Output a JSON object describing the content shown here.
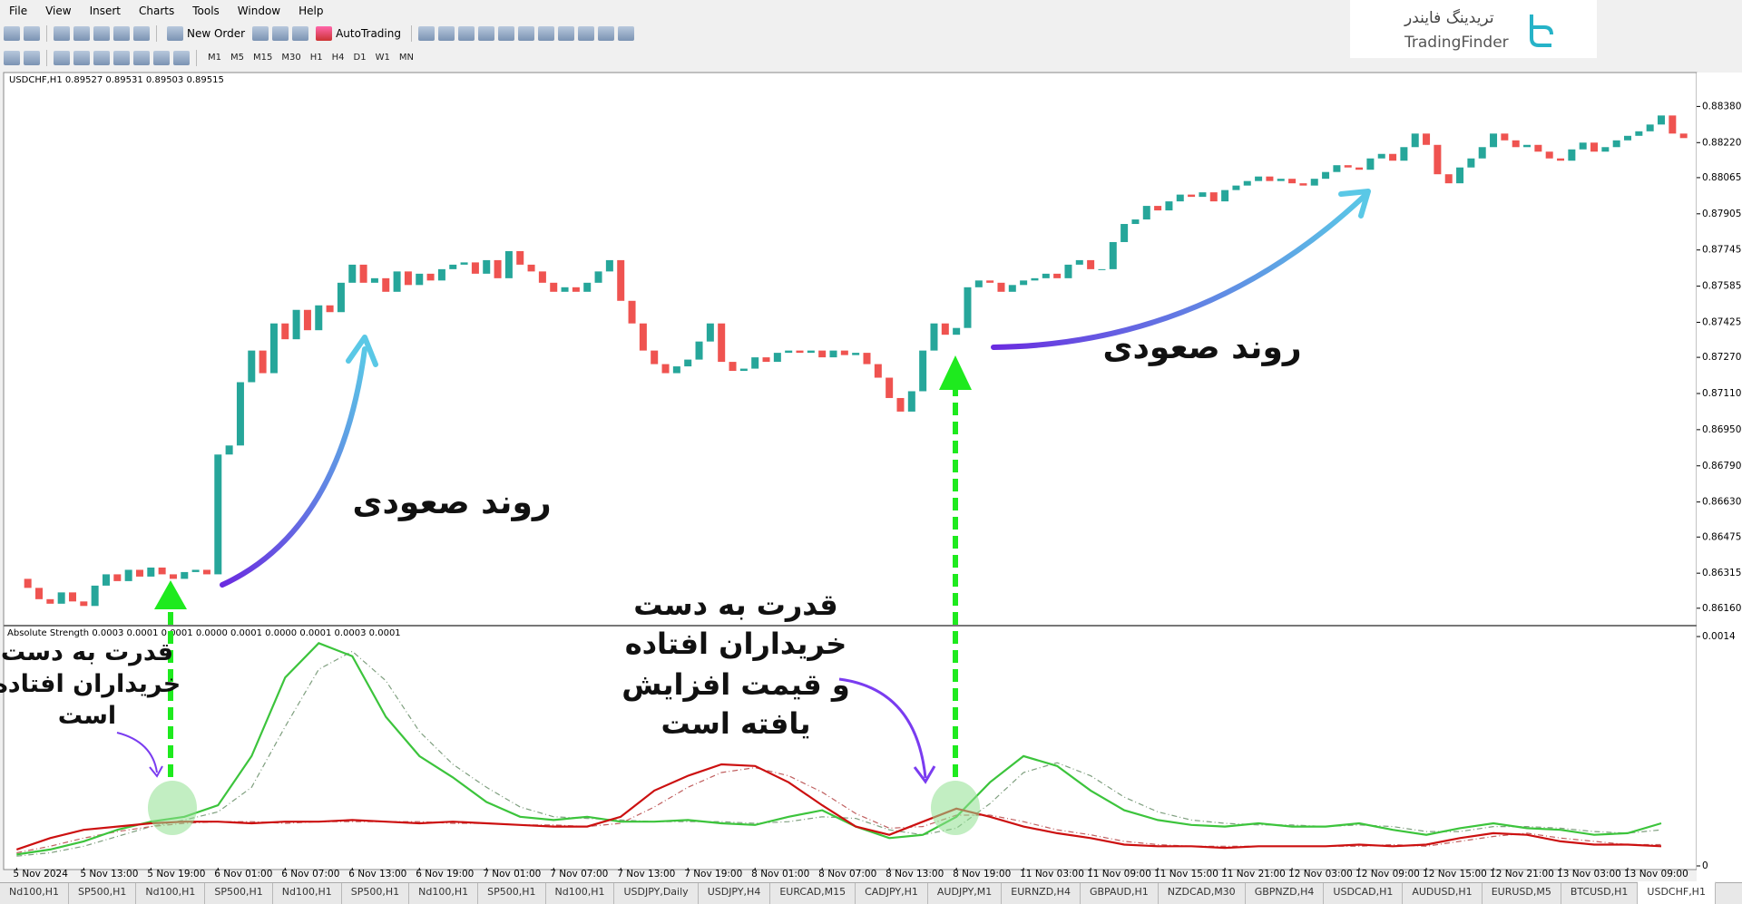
{
  "menu": [
    "File",
    "View",
    "Insert",
    "Charts",
    "Tools",
    "Window",
    "Help"
  ],
  "toolbar": {
    "new_order": "New Order",
    "auto_trading": "AutoTrading",
    "timeframes": [
      "M1",
      "M5",
      "M15",
      "M30",
      "H1",
      "H4",
      "D1",
      "W1",
      "MN"
    ]
  },
  "logo": {
    "persian": "تریدینگ فایندر",
    "latin": "TradingFinder"
  },
  "annotations": {
    "uptrend_1": "روند صعودی",
    "uptrend_2": "روند صعودی",
    "note_1": [
      "قدرت به دست",
      "خریداران افتاده",
      "است"
    ],
    "note_2": [
      "قدرت به دست",
      "خریداران افتاده",
      "و قیمت افزایش",
      "یافته است"
    ]
  },
  "tabs": [
    "Nd100,H1",
    "SP500,H1",
    "Nd100,H1",
    "SP500,H1",
    "Nd100,H1",
    "SP500,H1",
    "Nd100,H1",
    "SP500,H1",
    "Nd100,H1",
    "USDJPY,Daily",
    "USDJPY,H4",
    "EURCAD,M15",
    "CADJPY,H1",
    "AUDJPY,M1",
    "EURNZD,H4",
    "GBPAUD,H1",
    "NZDCAD,M30",
    "GBPNZD,H4",
    "USDCAD,H1",
    "AUDUSD,H1",
    "EURUSD,M5",
    "BTCUSD,H1",
    "USDCHF,H1"
  ],
  "active_tab": 22,
  "chart_data": [
    {
      "type": "candlestick",
      "title": "USDCHF,H1  0.89527 0.89531 0.89503 0.89515",
      "up_color": "#26a69a",
      "down_color": "#ef5350",
      "xlim": [
        -1,
        150
      ],
      "ylim": [
        0.86091,
        0.88522
      ],
      "yticks": [
        {
          "value": 0.8838,
          "label": "0.88380"
        },
        {
          "value": 0.8822,
          "label": "0.88220"
        },
        0.88065,
        0.87905,
        0.87745,
        0.87585,
        0.87425,
        {
          "value": 0.8727,
          "label": "0.87270"
        },
        {
          "value": 0.8711,
          "label": "0.87110"
        },
        {
          "value": 0.8695,
          "label": "0.86950"
        },
        {
          "value": 0.8679,
          "label": "0.86790"
        },
        {
          "value": 0.8663,
          "label": "0.86630"
        },
        0.86475,
        0.86315,
        {
          "value": 0.8616,
          "label": "0.86160"
        }
      ],
      "values": [
        0.8629,
        0.8625,
        0.862,
        0.8618,
        0.8623,
        0.8619,
        0.8617,
        0.8626,
        0.8631,
        0.8628,
        0.8633,
        0.863,
        0.8634,
        0.8631,
        0.8629,
        0.8632,
        0.8633,
        0.8631,
        0.8684,
        0.8688,
        0.8716,
        0.873,
        0.872,
        0.8742,
        0.8735,
        0.8748,
        0.8739,
        0.875,
        0.8747,
        0.876,
        0.8768,
        0.876,
        0.8762,
        0.8756,
        0.8765,
        0.8759,
        0.8764,
        0.8761,
        0.8766,
        0.8768,
        0.8769,
        0.8764,
        0.877,
        0.8762,
        0.8774,
        0.8768,
        0.8765,
        0.876,
        0.8756,
        0.8758,
        0.8756,
        0.876,
        0.8765,
        0.877,
        0.8752,
        0.8742,
        0.873,
        0.8724,
        0.872,
        0.8723,
        0.8726,
        0.8734,
        0.8742,
        0.8725,
        0.8721,
        0.8722,
        0.8727,
        0.8725,
        0.8729,
        0.873,
        0.8729,
        0.873,
        0.8727,
        0.873,
        0.8728,
        0.8729,
        0.8724,
        0.8718,
        0.8709,
        0.8703,
        0.8712,
        0.873,
        0.8742,
        0.8737,
        0.874,
        0.8758,
        0.8761,
        0.876,
        0.8756,
        0.8759,
        0.8761,
        0.8762,
        0.8764,
        0.8762,
        0.8768,
        0.877,
        0.8766,
        0.8766,
        0.8778,
        0.8786,
        0.8788,
        0.8794,
        0.8792,
        0.8796,
        0.8799,
        0.8798,
        0.88,
        0.8796,
        0.8801,
        0.8803,
        0.8805,
        0.8807,
        0.8805,
        0.8806,
        0.8804,
        0.8803,
        0.8806,
        0.8809,
        0.8812,
        0.8811,
        0.881,
        0.8815,
        0.8817,
        0.8814,
        0.882,
        0.8826,
        0.8821,
        0.8808,
        0.8804,
        0.8811,
        0.8815,
        0.882,
        0.8826,
        0.8823,
        0.882,
        0.8821,
        0.8818,
        0.8815,
        0.8814,
        0.8819,
        0.8822,
        0.8818,
        0.882,
        0.8823,
        0.8825,
        0.8827,
        0.883,
        0.8834,
        0.8826,
        0.8824
      ]
    },
    {
      "type": "line",
      "title": "Absolute Strength 0.0003 0.0001 0.0001 0.0000 0.0001 0.0000 0.0001 0.0003 0.0001",
      "xlim": [
        -1,
        150
      ],
      "ylim": [
        0,
        0.00145
      ],
      "yticks": [
        0.0014,
        0
      ],
      "xticks": [
        {
          "value": 0,
          "label": "5 Nov 2024"
        },
        {
          "value": 6,
          "label": "5 Nov 13:00"
        },
        {
          "value": 12,
          "label": "5 Nov 19:00"
        },
        {
          "value": 18,
          "label": "6 Nov 01:00"
        },
        {
          "value": 24,
          "label": "6 Nov 07:00"
        },
        {
          "value": 30,
          "label": "6 Nov 13:00"
        },
        {
          "value": 36,
          "label": "6 Nov 19:00"
        },
        {
          "value": 42,
          "label": "7 Nov 01:00"
        },
        {
          "value": 48,
          "label": "7 Nov 07:00"
        },
        {
          "value": 54,
          "label": "7 Nov 13:00"
        },
        {
          "value": 60,
          "label": "7 Nov 19:00"
        },
        {
          "value": 66,
          "label": "8 Nov 01:00"
        },
        {
          "value": 72,
          "label": "8 Nov 07:00"
        },
        {
          "value": 78,
          "label": "8 Nov 13:00"
        },
        {
          "value": 84,
          "label": "8 Nov 19:00"
        },
        {
          "value": 90,
          "label": "11 Nov 03:00"
        },
        {
          "value": 96,
          "label": "11 Nov 09:00"
        },
        {
          "value": 102,
          "label": "11 Nov 15:00"
        },
        {
          "value": 108,
          "label": "11 Nov 21:00"
        },
        {
          "value": 114,
          "label": "12 Nov 03:00"
        },
        {
          "value": 120,
          "label": "12 Nov 09:00"
        },
        {
          "value": 126,
          "label": "12 Nov 15:00"
        },
        {
          "value": 132,
          "label": "12 Nov 21:00"
        },
        {
          "value": 138,
          "label": "13 Nov 03:00"
        },
        {
          "value": 144,
          "label": "13 Nov 09:00"
        }
      ],
      "x": [
        0,
        3,
        6,
        9,
        12,
        15,
        18,
        21,
        24,
        27,
        30,
        33,
        36,
        39,
        42,
        45,
        48,
        51,
        54,
        57,
        60,
        63,
        66,
        69,
        72,
        75,
        78,
        81,
        84,
        87,
        90,
        93,
        96,
        99,
        102,
        105,
        108,
        111,
        114,
        117,
        120,
        123,
        126,
        129,
        132,
        135,
        138,
        141,
        144,
        147
      ],
      "series": [
        {
          "color": "#7f9f7f",
          "style": "dashdot",
          "values": [
            6e-05,
            8e-05,
            0.00012,
            0.00018,
            0.00024,
            0.00028,
            0.00033,
            0.00048,
            0.00085,
            0.0012,
            0.00131,
            0.00113,
            0.00082,
            0.00062,
            0.00048,
            0.00036,
            0.0003,
            0.00029,
            0.00028,
            0.00027,
            0.00027,
            0.00027,
            0.00026,
            0.00027,
            0.0003,
            0.00029,
            0.00022,
            0.00019,
            0.00023,
            0.00038,
            0.00057,
            0.00063,
            0.00055,
            0.00042,
            0.00033,
            0.00028,
            0.00026,
            0.00025,
            0.00025,
            0.00024,
            0.00025,
            0.00024,
            0.00021,
            0.00021,
            0.00024,
            0.00024,
            0.00023,
            0.00021,
            0.0002,
            0.00022
          ]
        },
        {
          "color": "#c06060",
          "style": "dashdot",
          "values": [
            8e-05,
            0.00012,
            0.00017,
            0.00021,
            0.00024,
            0.00026,
            0.00027,
            0.00027,
            0.00026,
            0.00027,
            0.00027,
            0.00027,
            0.00027,
            0.00026,
            0.00026,
            0.00025,
            0.00025,
            0.00024,
            0.00026,
            0.00036,
            0.00048,
            0.00057,
            0.0006,
            0.00055,
            0.00045,
            0.00032,
            0.00023,
            0.00024,
            0.00031,
            0.00031,
            0.00027,
            0.00022,
            0.00019,
            0.00015,
            0.00013,
            0.00012,
            0.00012,
            0.00012,
            0.00012,
            0.00012,
            0.00012,
            0.00013,
            0.00012,
            0.00015,
            0.00018,
            0.0002,
            0.00017,
            0.00015,
            0.00013,
            0.00013
          ]
        },
        {
          "color": "#3cc43c",
          "style": "solid",
          "values": [
            7e-05,
            0.0001,
            0.00015,
            0.00022,
            0.00027,
            0.0003,
            0.00037,
            0.00067,
            0.00115,
            0.00136,
            0.00128,
            0.00091,
            0.00067,
            0.00054,
            0.00039,
            0.0003,
            0.00028,
            0.0003,
            0.00027,
            0.00027,
            0.00028,
            0.00026,
            0.00025,
            0.0003,
            0.00034,
            0.00024,
            0.00017,
            0.00019,
            0.0003,
            0.00051,
            0.00067,
            0.00061,
            0.00046,
            0.00034,
            0.00028,
            0.00025,
            0.00024,
            0.00026,
            0.00024,
            0.00024,
            0.00026,
            0.00022,
            0.00019,
            0.00023,
            0.00026,
            0.00023,
            0.00022,
            0.00019,
            0.0002,
            0.00026
          ]
        },
        {
          "color": "#cc1010",
          "style": "solid",
          "values": [
            0.0001,
            0.00017,
            0.00022,
            0.00024,
            0.00026,
            0.00027,
            0.00027,
            0.00026,
            0.00027,
            0.00027,
            0.00028,
            0.00027,
            0.00026,
            0.00027,
            0.00026,
            0.00025,
            0.00024,
            0.00024,
            0.0003,
            0.00046,
            0.00055,
            0.00062,
            0.00061,
            0.00051,
            0.00037,
            0.00024,
            0.00019,
            0.00027,
            0.00035,
            0.0003,
            0.00024,
            0.0002,
            0.00017,
            0.00013,
            0.00012,
            0.00012,
            0.00011,
            0.00012,
            0.00012,
            0.00012,
            0.00013,
            0.00012,
            0.00013,
            0.00017,
            0.0002,
            0.00019,
            0.00015,
            0.00013,
            0.00013,
            0.00012
          ]
        }
      ]
    }
  ]
}
